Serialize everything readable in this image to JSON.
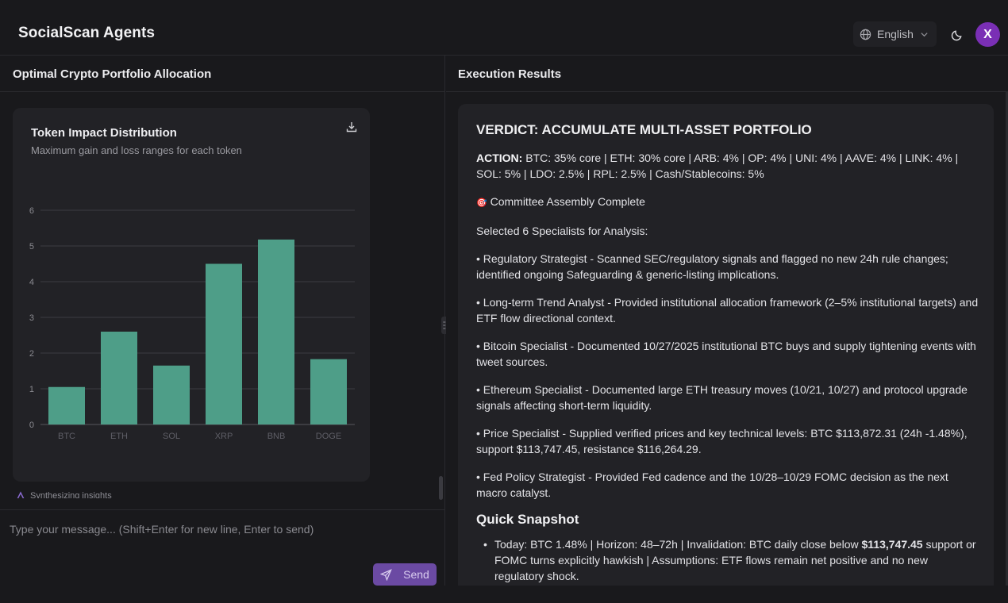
{
  "header": {
    "app_title": "SocialScan Agents",
    "language": "English",
    "avatar_initial": "X"
  },
  "left_panel": {
    "title": "Optimal Crypto Portfolio Allocation",
    "status_text": "Synthesizing insights",
    "input_placeholder": "Type your message... (Shift+Enter for new line, Enter to send)",
    "send_label": "Send"
  },
  "chart_data": {
    "type": "bar",
    "title": "Token Impact Distribution",
    "subtitle": "Maximum gain and loss ranges for each token",
    "categories": [
      "BTC",
      "ETH",
      "SOL",
      "XRP",
      "BNB",
      "DOGE"
    ],
    "values": [
      1.05,
      2.6,
      1.65,
      4.5,
      5.18,
      1.83
    ],
    "yticks": [
      "0",
      "1",
      "2",
      "3",
      "4",
      "5",
      "6"
    ],
    "ylim": [
      0,
      6
    ],
    "xlabel": "",
    "ylabel": "",
    "grid": true,
    "bar_color": "#4e9e88"
  },
  "right_panel": {
    "title": "Execution Results",
    "verdict": "VERDICT: ACCUMULATE MULTI-ASSET PORTFOLIO",
    "action_label": "ACTION:",
    "action_text": " BTC: 35% core | ETH: 30% core | ARB: 4% | OP: 4% | UNI: 4% | AAVE: 4% | LINK: 4% | SOL: 5% | LDO: 2.5% | RPL: 2.5% | Cash/Stablecoins: 5%",
    "committee_icon": "🎯",
    "committee_text": " Committee Assembly Complete",
    "selected_text": "Selected 6 Specialists for Analysis:",
    "specialists": [
      "• Regulatory Strategist - Scanned SEC/regulatory signals and flagged no new 24h rule changes; identified ongoing Safeguarding & generic-listing implications.",
      "• Long-term Trend Analyst - Provided institutional allocation framework (2–5% institutional targets) and ETF flow directional context.",
      "• Bitcoin Specialist - Documented 10/27/2025 institutional BTC buys and supply tightening events with tweet sources.",
      "• Ethereum Specialist - Documented large ETH treasury moves (10/21, 10/27) and protocol upgrade signals affecting short-term liquidity.",
      "• Price Specialist - Supplied verified prices and key technical levels: BTC $113,872.31 (24h -1.48%), support $113,747.45, resistance $116,264.29.",
      "• Fed Policy Strategist - Provided Fed cadence and the 10/28–10/29 FOMC decision as the next macro catalyst."
    ],
    "snapshot_heading": "Quick Snapshot",
    "snapshot_bullet_marker": "•",
    "snapshot_pre": "Today: BTC 1.48% | Horizon: 48–72h | Invalidation: BTC daily close below ",
    "snapshot_bold": "$113,747.45",
    "snapshot_post": " support or FOMC turns explicitly hawkish | Assumptions: ETF flows remain net positive and no new regulatory shock."
  },
  "colors": {
    "accent_purple": "#6b4aa3",
    "avatar_purple": "#7a2fb5",
    "bar_green": "#4e9e88"
  }
}
